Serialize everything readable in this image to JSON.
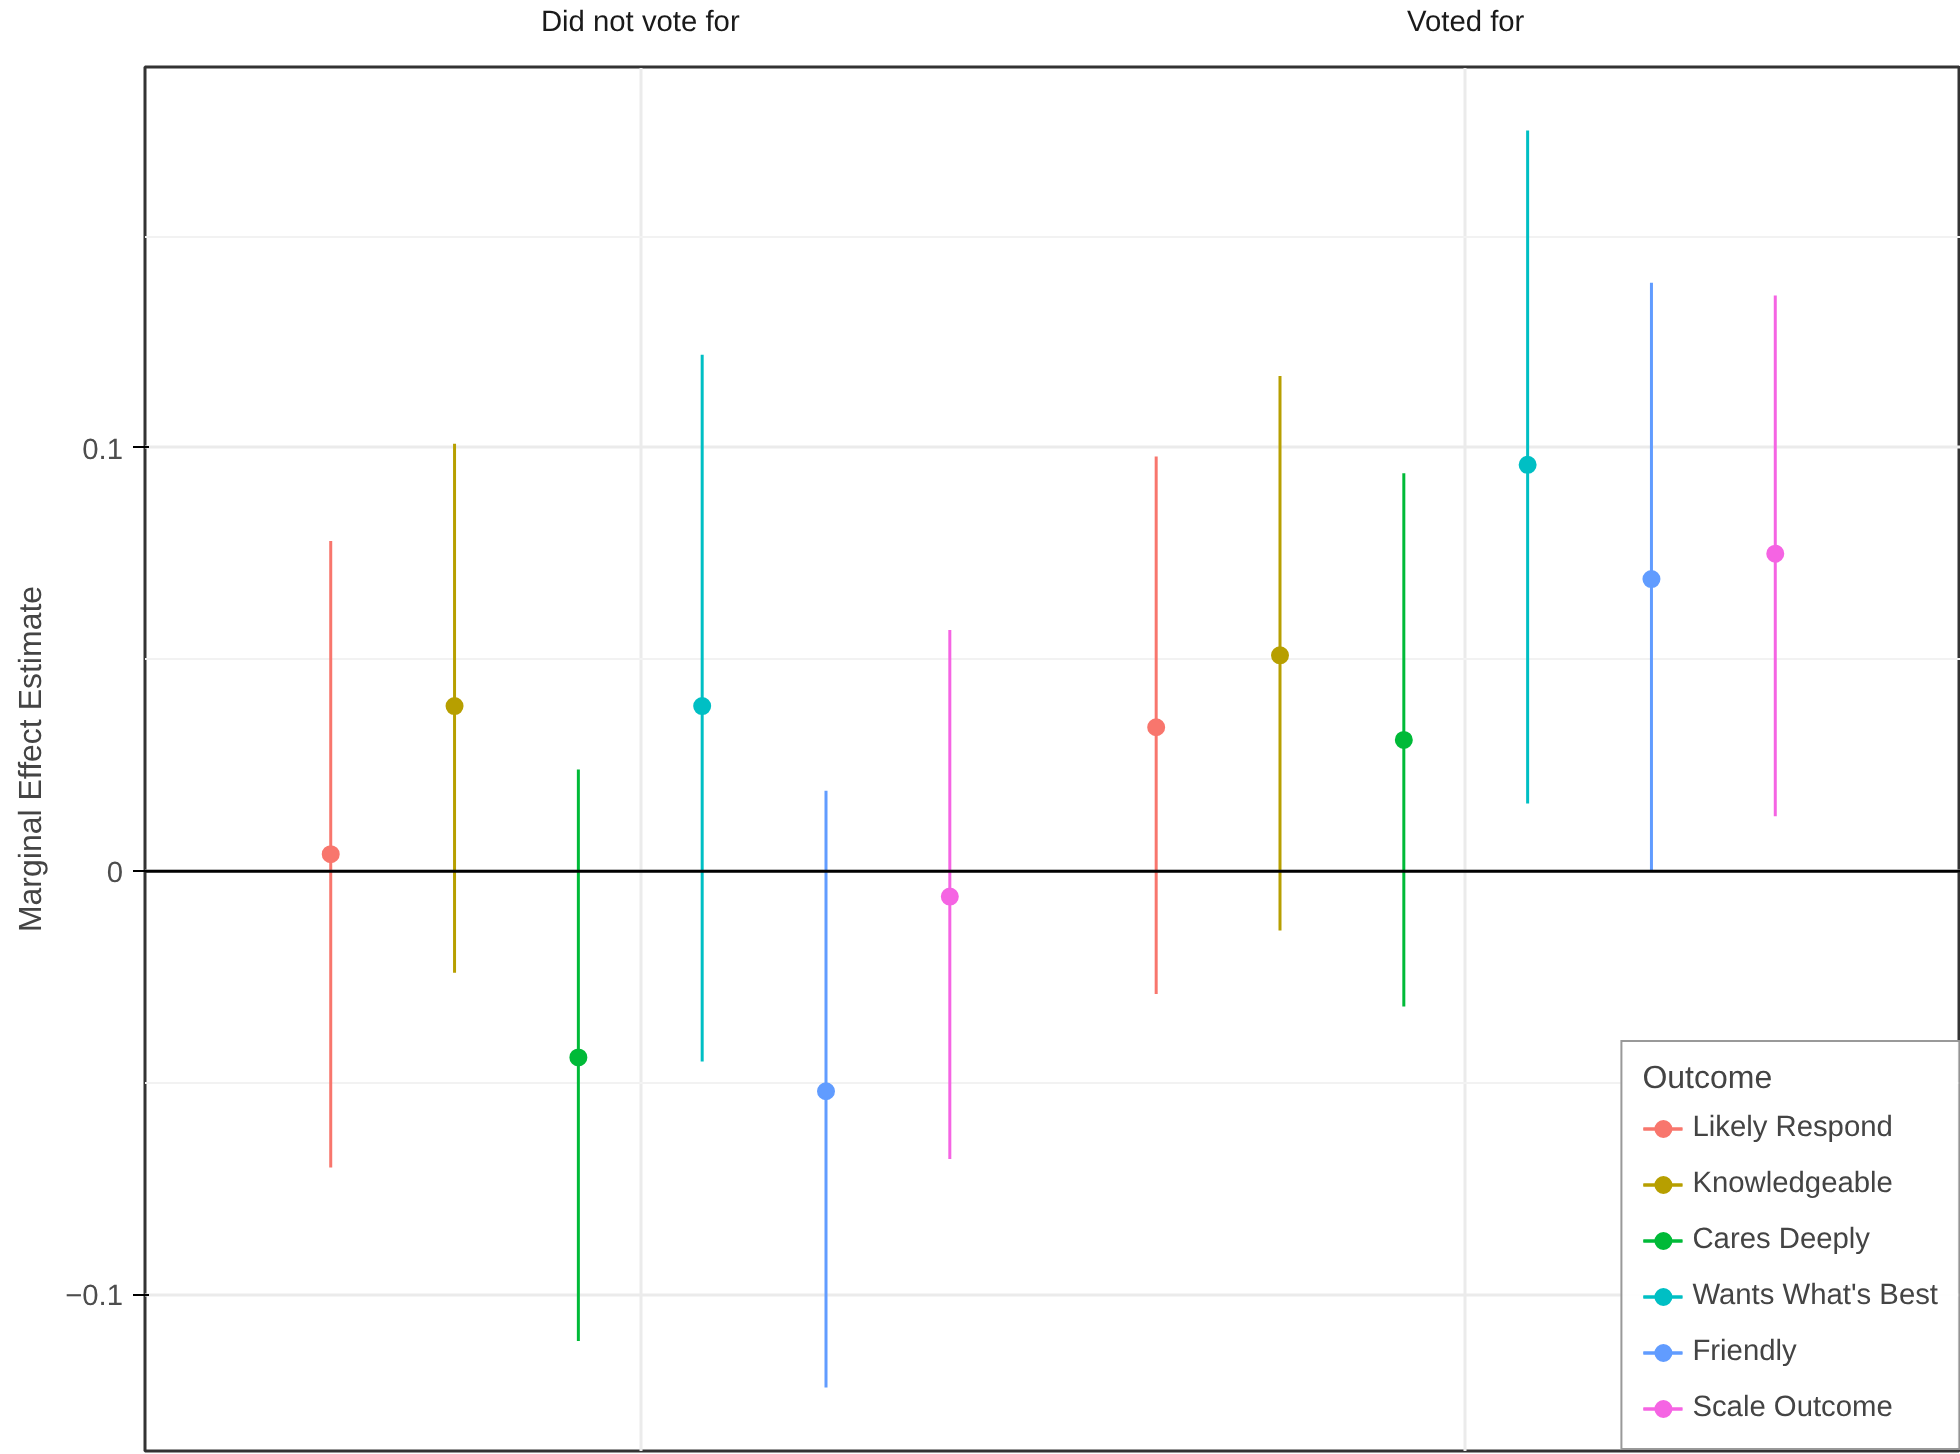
{
  "chart_data": {
    "type": "scatter",
    "ylabel": "Marginal Effect Estimate",
    "legend_title": "Outcome",
    "categories": [
      "Did not vote for",
      "Voted for"
    ],
    "ylim": [
      -0.137,
      0.19
    ],
    "yticks": [
      -0.1,
      0.0,
      0.1
    ],
    "grid": true,
    "marker": "circle",
    "legend": "bottom right",
    "ref_lines": [
      {
        "axis": "y",
        "value": 0,
        "color": "#000000"
      }
    ],
    "series": [
      {
        "name": "Likely Respond",
        "color": "#F8766D",
        "values": [
          0.004,
          0.034
        ],
        "errors": [
          [
            -0.07,
            0.078
          ],
          [
            -0.029,
            0.098
          ]
        ]
      },
      {
        "name": "Knowledgeable",
        "color": "#B79F00",
        "values": [
          0.039,
          0.051
        ],
        "errors": [
          [
            -0.024,
            0.101
          ],
          [
            -0.014,
            0.117
          ]
        ]
      },
      {
        "name": "Cares Deeply",
        "color": "#00BA38",
        "values": [
          -0.044,
          0.031
        ],
        "errors": [
          [
            -0.111,
            0.024
          ],
          [
            -0.032,
            0.094
          ]
        ]
      },
      {
        "name": "Wants What's Best",
        "color": "#00BFC4",
        "values": [
          0.039,
          0.096
        ],
        "errors": [
          [
            -0.045,
            0.122
          ],
          [
            0.016,
            0.175
          ]
        ]
      },
      {
        "name": "Friendly",
        "color": "#619CFF",
        "values": [
          -0.052,
          0.069
        ],
        "errors": [
          [
            -0.122,
            0.019
          ],
          [
            0.0,
            0.139
          ]
        ]
      },
      {
        "name": "Scale Outcome",
        "color": "#F564E3",
        "values": [
          -0.006,
          0.075
        ],
        "errors": [
          [
            -0.068,
            0.057
          ],
          [
            0.013,
            0.136
          ]
        ]
      }
    ]
  }
}
